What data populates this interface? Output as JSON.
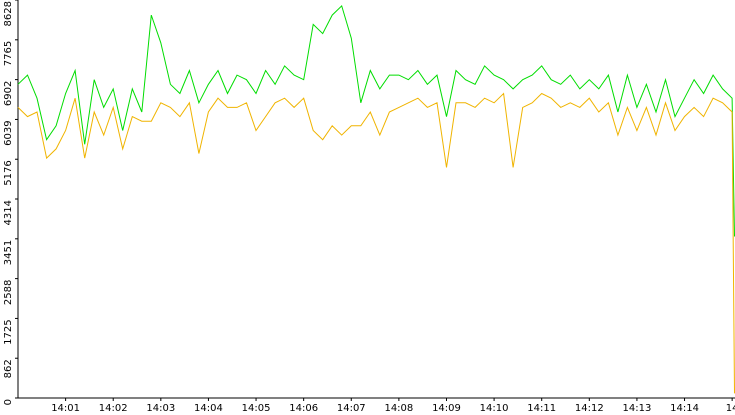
{
  "chart_data": {
    "type": "line",
    "x": [
      0,
      0.2,
      0.4,
      0.6,
      0.8,
      1.0,
      1.2,
      1.4,
      1.6,
      1.8,
      2.0,
      2.2,
      2.4,
      2.6,
      2.8,
      3.0,
      3.2,
      3.4,
      3.6,
      3.8,
      4.0,
      4.2,
      4.4,
      4.6,
      4.8,
      5.0,
      5.2,
      5.4,
      5.6,
      5.8,
      6.0,
      6.2,
      6.4,
      6.6,
      6.8,
      7.0,
      7.2,
      7.4,
      7.6,
      7.8,
      8.0,
      8.2,
      8.4,
      8.6,
      8.8,
      9.0,
      9.2,
      9.4,
      9.6,
      9.8,
      10.0,
      10.2,
      10.4,
      10.6,
      10.8,
      11.0,
      11.2,
      11.4,
      11.6,
      11.8,
      12.0,
      12.2,
      12.4,
      12.6,
      12.8,
      13.0,
      13.2,
      13.4,
      13.6,
      13.8,
      14.0,
      14.2,
      14.4,
      14.6,
      14.8,
      15.0,
      15.05
    ],
    "series": [
      {
        "color": "#00dd00",
        "values": [
          6800,
          7000,
          6500,
          5600,
          5900,
          6600,
          7100,
          5500,
          6900,
          6300,
          6700,
          5800,
          6700,
          6200,
          8300,
          7700,
          6800,
          6600,
          7100,
          6400,
          6800,
          7100,
          6600,
          7000,
          6900,
          6600,
          7100,
          6800,
          7200,
          7000,
          6900,
          8100,
          7900,
          8300,
          8500,
          7800,
          6400,
          7100,
          6700,
          7000,
          7000,
          6900,
          7100,
          6800,
          7000,
          6100,
          7100,
          6900,
          6800,
          7200,
          7000,
          6900,
          6700,
          6900,
          7000,
          7200,
          6900,
          6800,
          7000,
          6700,
          6900,
          6700,
          7000,
          6200,
          7000,
          6300,
          6800,
          6200,
          6900,
          6100,
          6500,
          6900,
          6600,
          7000,
          6700,
          6500,
          3500
        ]
      },
      {
        "color": "#f0b400",
        "values": [
          6300,
          6100,
          6200,
          5200,
          5400,
          5800,
          6500,
          5200,
          6200,
          5700,
          6300,
          5400,
          6100,
          6000,
          6000,
          6400,
          6300,
          6100,
          6400,
          5300,
          6200,
          6500,
          6300,
          6300,
          6400,
          5800,
          6100,
          6400,
          6500,
          6300,
          6500,
          5800,
          5600,
          5900,
          5700,
          5900,
          5900,
          6200,
          5700,
          6200,
          6300,
          6400,
          6500,
          6300,
          6400,
          5000,
          6400,
          6400,
          6300,
          6500,
          6400,
          6600,
          5000,
          6300,
          6400,
          6600,
          6500,
          6300,
          6400,
          6300,
          6500,
          6200,
          6400,
          5700,
          6300,
          5800,
          6300,
          5700,
          6400,
          5800,
          6100,
          6300,
          6100,
          6500,
          6400,
          6200,
          100
        ]
      }
    ],
    "xlim": [
      0,
      15.06
    ],
    "xticks": [
      {
        "value": 1,
        "label": "14:01"
      },
      {
        "value": 2,
        "label": "14:02"
      },
      {
        "value": 3,
        "label": "14:03"
      },
      {
        "value": 4,
        "label": "14:04"
      },
      {
        "value": 5,
        "label": "14:05"
      },
      {
        "value": 6,
        "label": "14:06"
      },
      {
        "value": 7,
        "label": "14:07"
      },
      {
        "value": 8,
        "label": "14:08"
      },
      {
        "value": 9,
        "label": "14:09"
      },
      {
        "value": 10,
        "label": "14:10"
      },
      {
        "value": 11,
        "label": "14:11"
      },
      {
        "value": 12,
        "label": "14:12"
      },
      {
        "value": 13,
        "label": "14:13"
      },
      {
        "value": 14,
        "label": "14:14"
      },
      {
        "value": 15,
        "label": "14"
      }
    ],
    "ylim": [
      0,
      8628
    ],
    "yticks": [
      0,
      862,
      1725,
      2588,
      3451,
      4314,
      5176,
      6039,
      6902,
      7765,
      8628
    ]
  }
}
